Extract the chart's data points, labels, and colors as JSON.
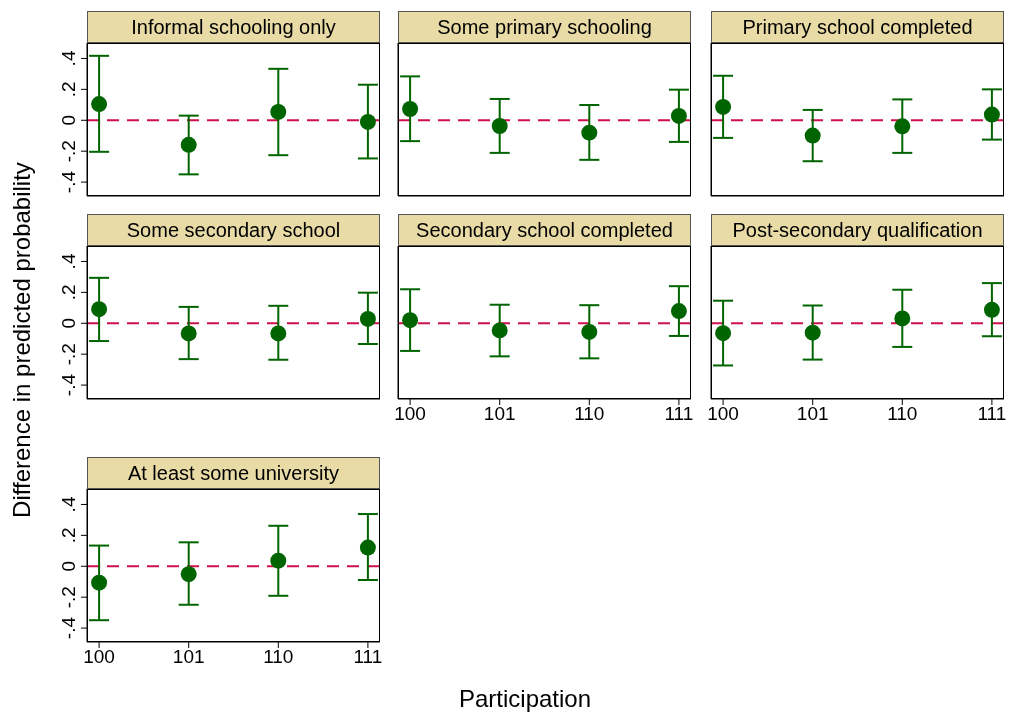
{
  "chart_data": [
    {
      "type": "scatter",
      "title": "Informal schooling only",
      "categories": [
        "100",
        "101",
        "110",
        "111"
      ],
      "tick_labels": "y",
      "marker": "circle",
      "ylim": [
        -0.49,
        0.5
      ],
      "yticks": [
        {
          "value": -0.4,
          "label": "-.4"
        },
        {
          "value": -0.2,
          "label": "-.2"
        },
        {
          "value": 0,
          "label": "0"
        },
        {
          "value": 0.2,
          "label": ".2"
        },
        {
          "value": 0.4,
          "label": ".4"
        }
      ],
      "ref_lines": [
        {
          "axis": "y",
          "value": 0,
          "color": "#d0104c",
          "line_style": "dashed"
        }
      ],
      "series": [
        {
          "color": "#006400",
          "values": [
            0.105,
            -0.159,
            0.054,
            -0.011
          ],
          "errors": [
            [
              -0.204,
              0.417
            ],
            [
              -0.35,
              0.03
            ],
            [
              -0.226,
              0.333
            ],
            [
              -0.247,
              0.23
            ]
          ]
        }
      ]
    },
    {
      "type": "scatter",
      "title": "Some primary schooling",
      "categories": [
        "100",
        "101",
        "110",
        "111"
      ],
      "tick_labels": false,
      "marker": "circle",
      "ylim": [
        -0.49,
        0.5
      ],
      "ref_lines": [
        {
          "axis": "y",
          "value": 0,
          "color": "#d0104c",
          "line_style": "dashed"
        }
      ],
      "series": [
        {
          "color": "#006400",
          "values": [
            0.073,
            -0.037,
            -0.08,
            0.028
          ],
          "errors": [
            [
              -0.135,
              0.284
            ],
            [
              -0.211,
              0.138
            ],
            [
              -0.256,
              0.099
            ],
            [
              -0.14,
              0.198
            ]
          ]
        }
      ]
    },
    {
      "type": "scatter",
      "title": "Primary school completed",
      "categories": [
        "100",
        "101",
        "110",
        "111"
      ],
      "tick_labels": false,
      "marker": "circle",
      "ylim": [
        -0.49,
        0.5
      ],
      "ref_lines": [
        {
          "axis": "y",
          "value": 0,
          "color": "#d0104c",
          "line_style": "dashed"
        }
      ],
      "series": [
        {
          "color": "#006400",
          "values": [
            0.086,
            -0.099,
            -0.039,
            0.037
          ],
          "errors": [
            [
              -0.114,
              0.288
            ],
            [
              -0.265,
              0.067
            ],
            [
              -0.211,
              0.135
            ],
            [
              -0.125,
              0.2
            ]
          ]
        }
      ]
    },
    {
      "type": "scatter",
      "title": "Some secondary school",
      "ylabel": "Difference in predicted probability",
      "categories": [
        "100",
        "101",
        "110",
        "111"
      ],
      "tick_labels": "y",
      "marker": "circle",
      "ylim": [
        -0.49,
        0.5
      ],
      "yticks": [
        {
          "value": -0.4,
          "label": "-.4"
        },
        {
          "value": -0.2,
          "label": "-.2"
        },
        {
          "value": 0,
          "label": "0"
        },
        {
          "value": 0.2,
          "label": ".2"
        },
        {
          "value": 0.4,
          "label": ".4"
        }
      ],
      "ref_lines": [
        {
          "axis": "y",
          "value": 0,
          "color": "#d0104c",
          "line_style": "dashed"
        }
      ],
      "series": [
        {
          "color": "#006400",
          "values": [
            0.091,
            -0.066,
            -0.066,
            0.028
          ],
          "errors": [
            [
              -0.115,
              0.294
            ],
            [
              -0.232,
              0.106
            ],
            [
              -0.236,
              0.113
            ],
            [
              -0.134,
              0.198
            ]
          ]
        }
      ]
    },
    {
      "type": "scatter",
      "title": "Secondary school completed",
      "xlabel": "Participation",
      "categories": [
        "100",
        "101",
        "110",
        "111"
      ],
      "tick_labels": "x",
      "marker": "circle",
      "ylim": [
        -0.49,
        0.5
      ],
      "ref_lines": [
        {
          "axis": "y",
          "value": 0,
          "color": "#d0104c",
          "line_style": "dashed"
        }
      ],
      "series": [
        {
          "color": "#006400",
          "values": [
            0.02,
            -0.046,
            -0.056,
            0.079
          ],
          "errors": [
            [
              -0.179,
              0.22
            ],
            [
              -0.214,
              0.12
            ],
            [
              -0.227,
              0.117
            ],
            [
              -0.082,
              0.24
            ]
          ]
        }
      ]
    },
    {
      "type": "scatter",
      "title": "Post-secondary qualification",
      "categories": [
        "100",
        "101",
        "110",
        "111"
      ],
      "tick_labels": "x",
      "marker": "circle",
      "ylim": [
        -0.49,
        0.5
      ],
      "ref_lines": [
        {
          "axis": "y",
          "value": 0,
          "color": "#d0104c",
          "line_style": "dashed"
        }
      ],
      "series": [
        {
          "color": "#006400",
          "values": [
            -0.064,
            -0.061,
            0.031,
            0.087
          ],
          "errors": [
            [
              -0.273,
              0.146
            ],
            [
              -0.235,
              0.115
            ],
            [
              -0.153,
              0.217
            ],
            [
              -0.084,
              0.26
            ]
          ]
        }
      ]
    },
    {
      "type": "scatter",
      "title": "At least some university",
      "categories": [
        "100",
        "101",
        "110",
        "111"
      ],
      "marker": "circle",
      "ylim": [
        -0.49,
        0.5
      ],
      "yticks": [
        {
          "value": -0.4,
          "label": "-.4"
        },
        {
          "value": -0.2,
          "label": "-.2"
        },
        {
          "value": 0,
          "label": "0"
        },
        {
          "value": 0.2,
          "label": ".2"
        },
        {
          "value": 0.4,
          "label": ".4"
        }
      ],
      "ref_lines": [
        {
          "axis": "y",
          "value": 0,
          "color": "#d0104c",
          "line_style": "dashed"
        }
      ],
      "series": [
        {
          "color": "#006400",
          "values": [
            -0.106,
            -0.051,
            0.036,
            0.121
          ],
          "errors": [
            [
              -0.349,
              0.134
            ],
            [
              -0.249,
              0.155
            ],
            [
              -0.191,
              0.262
            ],
            [
              -0.089,
              0.338
            ]
          ]
        }
      ]
    }
  ]
}
